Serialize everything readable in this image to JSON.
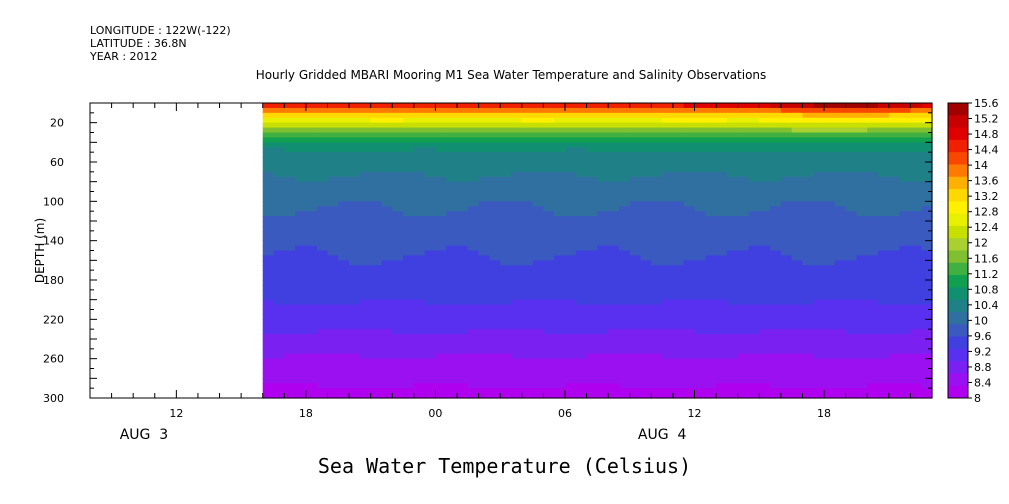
{
  "meta": {
    "longitude": "LONGITUDE : 122W(-122)",
    "latitude": "LATITUDE : 36.8N",
    "year": "YEAR : 2012"
  },
  "chart_data": {
    "type": "heatmap",
    "title": "Hourly Gridded MBARI Mooring M1 Sea Water Temperature and Salinity Observations",
    "footer_title": "Sea Water Temperature (Celsius)",
    "ylabel": "DEPTH (m)",
    "y_axis": {
      "ylim": [
        0,
        300
      ],
      "inverted": true,
      "ticks": [
        20,
        60,
        100,
        140,
        180,
        220,
        260,
        300
      ],
      "minor_step": 20
    },
    "x_axis": {
      "range_hours": [
        8,
        47
      ],
      "ticks": [
        {
          "hour": 12,
          "label": "12"
        },
        {
          "hour": 18,
          "label": "18"
        },
        {
          "hour": 24,
          "label": "00"
        },
        {
          "hour": 30,
          "label": "06"
        },
        {
          "hour": 36,
          "label": "12"
        },
        {
          "hour": 42,
          "label": "18"
        }
      ],
      "day_labels": [
        {
          "hour": 10.5,
          "label": "AUG  3"
        },
        {
          "hour": 34.5,
          "label": "AUG  4"
        }
      ]
    },
    "data_start_hour": 16,
    "depths": [
      0,
      10,
      20,
      30,
      40,
      50,
      60,
      80,
      100,
      120,
      140,
      160,
      180,
      200,
      220,
      240,
      260,
      280,
      300
    ],
    "profile": [
      15.0,
      13.4,
      12.5,
      11.5,
      10.8,
      10.5,
      10.35,
      10.15,
      9.95,
      9.8,
      9.7,
      9.55,
      9.45,
      9.3,
      9.1,
      8.85,
      8.6,
      8.4,
      8.2
    ],
    "surface_warm": {
      "center_hour": 43,
      "width_hours": 4,
      "amplitude": 1.0
    },
    "colorbar": {
      "levels": [
        "15.6",
        "15.2",
        "14.8",
        "14.4",
        "14",
        "13.6",
        "13.2",
        "12.8",
        "12.4",
        "12",
        "11.6",
        "11.2",
        "10.8",
        "10.4",
        "10",
        "9.6",
        "9.2",
        "8.8",
        "8.4",
        "8"
      ],
      "colors": [
        "#a00000",
        "#c80000",
        "#e00000",
        "#f02000",
        "#f84800",
        "#ff7a00",
        "#ffb000",
        "#ffd800",
        "#fff000",
        "#e8f000",
        "#c8e000",
        "#a8d030",
        "#80c030",
        "#40b040",
        "#10a050",
        "#109070",
        "#208088",
        "#3070a0",
        "#3a5ac0",
        "#4040e0",
        "#5a30f0",
        "#7a20f0",
        "#9a10f0",
        "#b000f0"
      ]
    }
  }
}
